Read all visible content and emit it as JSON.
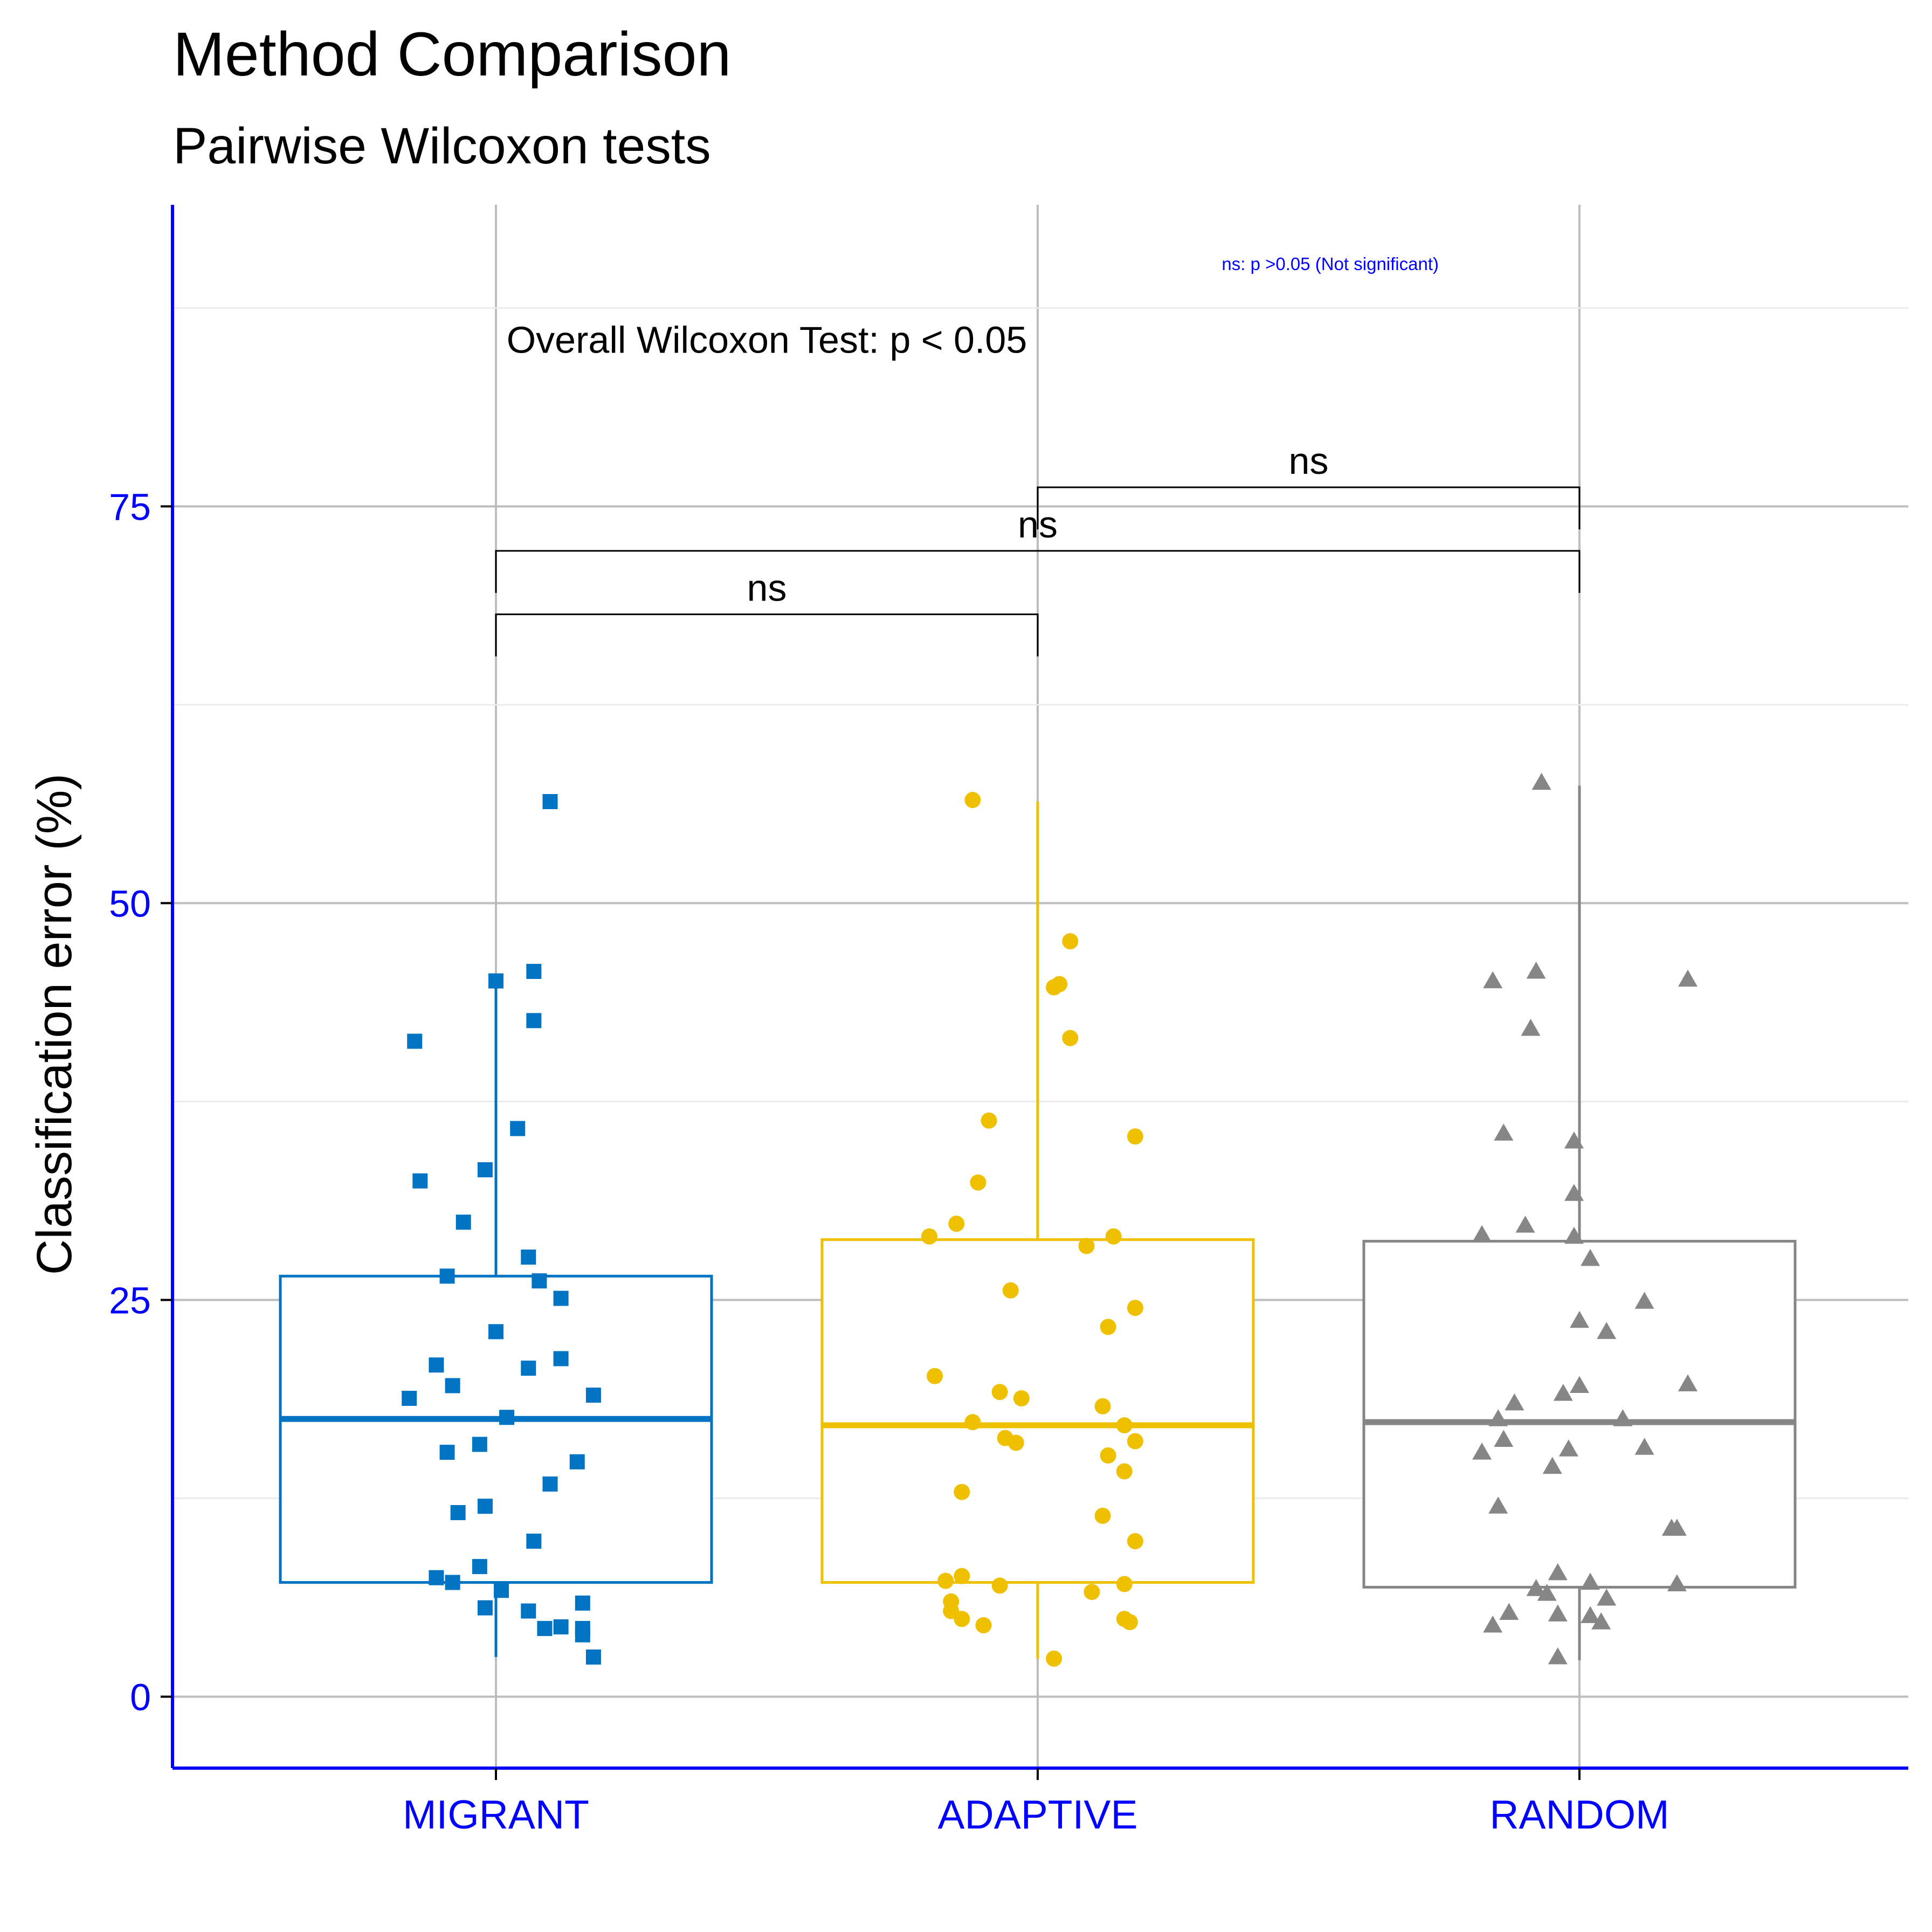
{
  "chart_data": {
    "type": "box",
    "title": "Method Comparison",
    "subtitle": "Pairwise Wilcoxon tests",
    "ylabel": "Classification error (%)",
    "xlabel": "",
    "ylim": [
      -4.5,
      94
    ],
    "yticks": [
      0,
      25,
      50,
      75
    ],
    "grid": true,
    "categories": [
      "MIGRANT",
      "ADAPTIVE",
      "RANDOM"
    ],
    "colors": [
      "#0073C2",
      "#EFC000",
      "#868686"
    ],
    "shapes": [
      "square",
      "circle",
      "triangle"
    ],
    "boxes": [
      {
        "whisker_low": 2.5,
        "q1": 7.2,
        "median": 17.5,
        "q3": 26.5,
        "whisker_high": 45.2
      },
      {
        "whisker_low": 2.4,
        "q1": 7.2,
        "median": 17.1,
        "q3": 28.8,
        "whisker_high": 56.4
      },
      {
        "whisker_low": 2.3,
        "q1": 6.9,
        "median": 17.3,
        "q3": 28.7,
        "whisker_high": 57.4
      }
    ],
    "points": [
      [
        {
          "dx": 0.1,
          "y": 56.4
        },
        {
          "dx": 0.07,
          "y": 45.7
        },
        {
          "dx": 0.0,
          "y": 45.1
        },
        {
          "dx": 0.07,
          "y": 42.6
        },
        {
          "dx": -0.15,
          "y": 41.3
        },
        {
          "dx": 0.04,
          "y": 35.8
        },
        {
          "dx": -0.02,
          "y": 33.2
        },
        {
          "dx": -0.14,
          "y": 32.5
        },
        {
          "dx": -0.06,
          "y": 29.9
        },
        {
          "dx": 0.06,
          "y": 27.7
        },
        {
          "dx": -0.09,
          "y": 26.5
        },
        {
          "dx": 0.08,
          "y": 26.2
        },
        {
          "dx": 0.12,
          "y": 25.1
        },
        {
          "dx": 0.0,
          "y": 23.0
        },
        {
          "dx": 0.12,
          "y": 21.3
        },
        {
          "dx": -0.11,
          "y": 20.9
        },
        {
          "dx": 0.06,
          "y": 20.7
        },
        {
          "dx": -0.08,
          "y": 19.6
        },
        {
          "dx": 0.18,
          "y": 19.0
        },
        {
          "dx": -0.16,
          "y": 18.8
        },
        {
          "dx": 0.02,
          "y": 17.6
        },
        {
          "dx": -0.03,
          "y": 15.9
        },
        {
          "dx": -0.09,
          "y": 15.4
        },
        {
          "dx": 0.15,
          "y": 14.8
        },
        {
          "dx": 0.1,
          "y": 13.4
        },
        {
          "dx": -0.02,
          "y": 12.0
        },
        {
          "dx": -0.07,
          "y": 11.6
        },
        {
          "dx": 0.07,
          "y": 9.8
        },
        {
          "dx": -0.03,
          "y": 8.2
        },
        {
          "dx": -0.11,
          "y": 7.5
        },
        {
          "dx": -0.08,
          "y": 7.2
        },
        {
          "dx": 0.01,
          "y": 6.7
        },
        {
          "dx": -0.02,
          "y": 5.6
        },
        {
          "dx": 0.06,
          "y": 5.4
        },
        {
          "dx": 0.16,
          "y": 5.9
        },
        {
          "dx": 0.09,
          "y": 4.3
        },
        {
          "dx": 0.12,
          "y": 4.4
        },
        {
          "dx": 0.16,
          "y": 4.3
        },
        {
          "dx": 0.16,
          "y": 3.9
        },
        {
          "dx": 0.18,
          "y": 2.5
        }
      ],
      [
        {
          "dx": -0.12,
          "y": 56.5
        },
        {
          "dx": 0.06,
          "y": 47.6
        },
        {
          "dx": 0.03,
          "y": 44.7
        },
        {
          "dx": 0.04,
          "y": 44.9
        },
        {
          "dx": 0.06,
          "y": 41.5
        },
        {
          "dx": -0.09,
          "y": 36.3
        },
        {
          "dx": 0.18,
          "y": 35.3
        },
        {
          "dx": -0.11,
          "y": 32.4
        },
        {
          "dx": -0.15,
          "y": 29.8
        },
        {
          "dx": -0.2,
          "y": 29.0
        },
        {
          "dx": 0.14,
          "y": 29.0
        },
        {
          "dx": 0.09,
          "y": 28.4
        },
        {
          "dx": -0.05,
          "y": 25.6
        },
        {
          "dx": 0.18,
          "y": 24.5
        },
        {
          "dx": 0.13,
          "y": 23.3
        },
        {
          "dx": -0.19,
          "y": 20.2
        },
        {
          "dx": -0.07,
          "y": 19.2
        },
        {
          "dx": -0.03,
          "y": 18.8
        },
        {
          "dx": 0.12,
          "y": 18.3
        },
        {
          "dx": -0.12,
          "y": 17.3
        },
        {
          "dx": 0.16,
          "y": 17.1
        },
        {
          "dx": -0.06,
          "y": 16.3
        },
        {
          "dx": -0.04,
          "y": 16.0
        },
        {
          "dx": 0.18,
          "y": 16.1
        },
        {
          "dx": 0.13,
          "y": 15.2
        },
        {
          "dx": 0.16,
          "y": 14.2
        },
        {
          "dx": -0.14,
          "y": 12.9
        },
        {
          "dx": 0.12,
          "y": 11.4
        },
        {
          "dx": 0.18,
          "y": 9.8
        },
        {
          "dx": -0.17,
          "y": 7.3
        },
        {
          "dx": -0.14,
          "y": 7.6
        },
        {
          "dx": -0.07,
          "y": 7.0
        },
        {
          "dx": 0.16,
          "y": 7.1
        },
        {
          "dx": 0.1,
          "y": 6.6
        },
        {
          "dx": -0.16,
          "y": 6.0
        },
        {
          "dx": -0.16,
          "y": 5.4
        },
        {
          "dx": -0.14,
          "y": 4.9
        },
        {
          "dx": -0.1,
          "y": 4.5
        },
        {
          "dx": 0.16,
          "y": 4.9
        },
        {
          "dx": 0.17,
          "y": 4.7
        },
        {
          "dx": 0.03,
          "y": 2.4
        }
      ],
      [
        {
          "dx": -0.07,
          "y": 57.6
        },
        {
          "dx": 0.2,
          "y": 45.2
        },
        {
          "dx": -0.08,
          "y": 45.7
        },
        {
          "dx": -0.16,
          "y": 45.1
        },
        {
          "dx": -0.09,
          "y": 42.1
        },
        {
          "dx": -0.14,
          "y": 35.5
        },
        {
          "dx": -0.01,
          "y": 35.0
        },
        {
          "dx": -0.01,
          "y": 31.7
        },
        {
          "dx": -0.1,
          "y": 29.7
        },
        {
          "dx": -0.18,
          "y": 29.1
        },
        {
          "dx": -0.01,
          "y": 29.0
        },
        {
          "dx": 0.02,
          "y": 27.6
        },
        {
          "dx": 0.12,
          "y": 24.9
        },
        {
          "dx": 0.0,
          "y": 23.7
        },
        {
          "dx": 0.05,
          "y": 23.0
        },
        {
          "dx": 0.2,
          "y": 19.7
        },
        {
          "dx": 0.0,
          "y": 19.6
        },
        {
          "dx": -0.03,
          "y": 19.1
        },
        {
          "dx": -0.12,
          "y": 18.5
        },
        {
          "dx": -0.15,
          "y": 17.5
        },
        {
          "dx": 0.08,
          "y": 17.5
        },
        {
          "dx": -0.14,
          "y": 16.2
        },
        {
          "dx": 0.12,
          "y": 15.7
        },
        {
          "dx": -0.02,
          "y": 15.6
        },
        {
          "dx": -0.18,
          "y": 15.4
        },
        {
          "dx": -0.05,
          "y": 14.5
        },
        {
          "dx": -0.15,
          "y": 12.0
        },
        {
          "dx": 0.17,
          "y": 10.6
        },
        {
          "dx": 0.18,
          "y": 10.6
        },
        {
          "dx": -0.04,
          "y": 7.8
        },
        {
          "dx": 0.02,
          "y": 7.2
        },
        {
          "dx": -0.08,
          "y": 6.8
        },
        {
          "dx": 0.18,
          "y": 7.1
        },
        {
          "dx": 0.05,
          "y": 6.2
        },
        {
          "dx": -0.13,
          "y": 5.3
        },
        {
          "dx": -0.04,
          "y": 5.2
        },
        {
          "dx": 0.02,
          "y": 5.1
        },
        {
          "dx": -0.06,
          "y": 6.5
        },
        {
          "dx": 0.04,
          "y": 4.7
        },
        {
          "dx": -0.16,
          "y": 4.5
        },
        {
          "dx": -0.04,
          "y": 2.5
        }
      ]
    ],
    "comparisons": [
      {
        "from": 0,
        "to": 1,
        "y": 68.2,
        "label": "ns"
      },
      {
        "from": 0,
        "to": 2,
        "y": 72.2,
        "label": "ns"
      },
      {
        "from": 1,
        "to": 2,
        "y": 76.2,
        "label": "ns"
      }
    ],
    "annotation": "Overall Wilcoxon Test: p < 0.05",
    "annotation_pos": {
      "x": 1.5,
      "y": 85.5
    },
    "note": "ns: p >0.05 (Not significant)",
    "note_pos": {
      "x": 2.54,
      "y": 90.3
    }
  }
}
